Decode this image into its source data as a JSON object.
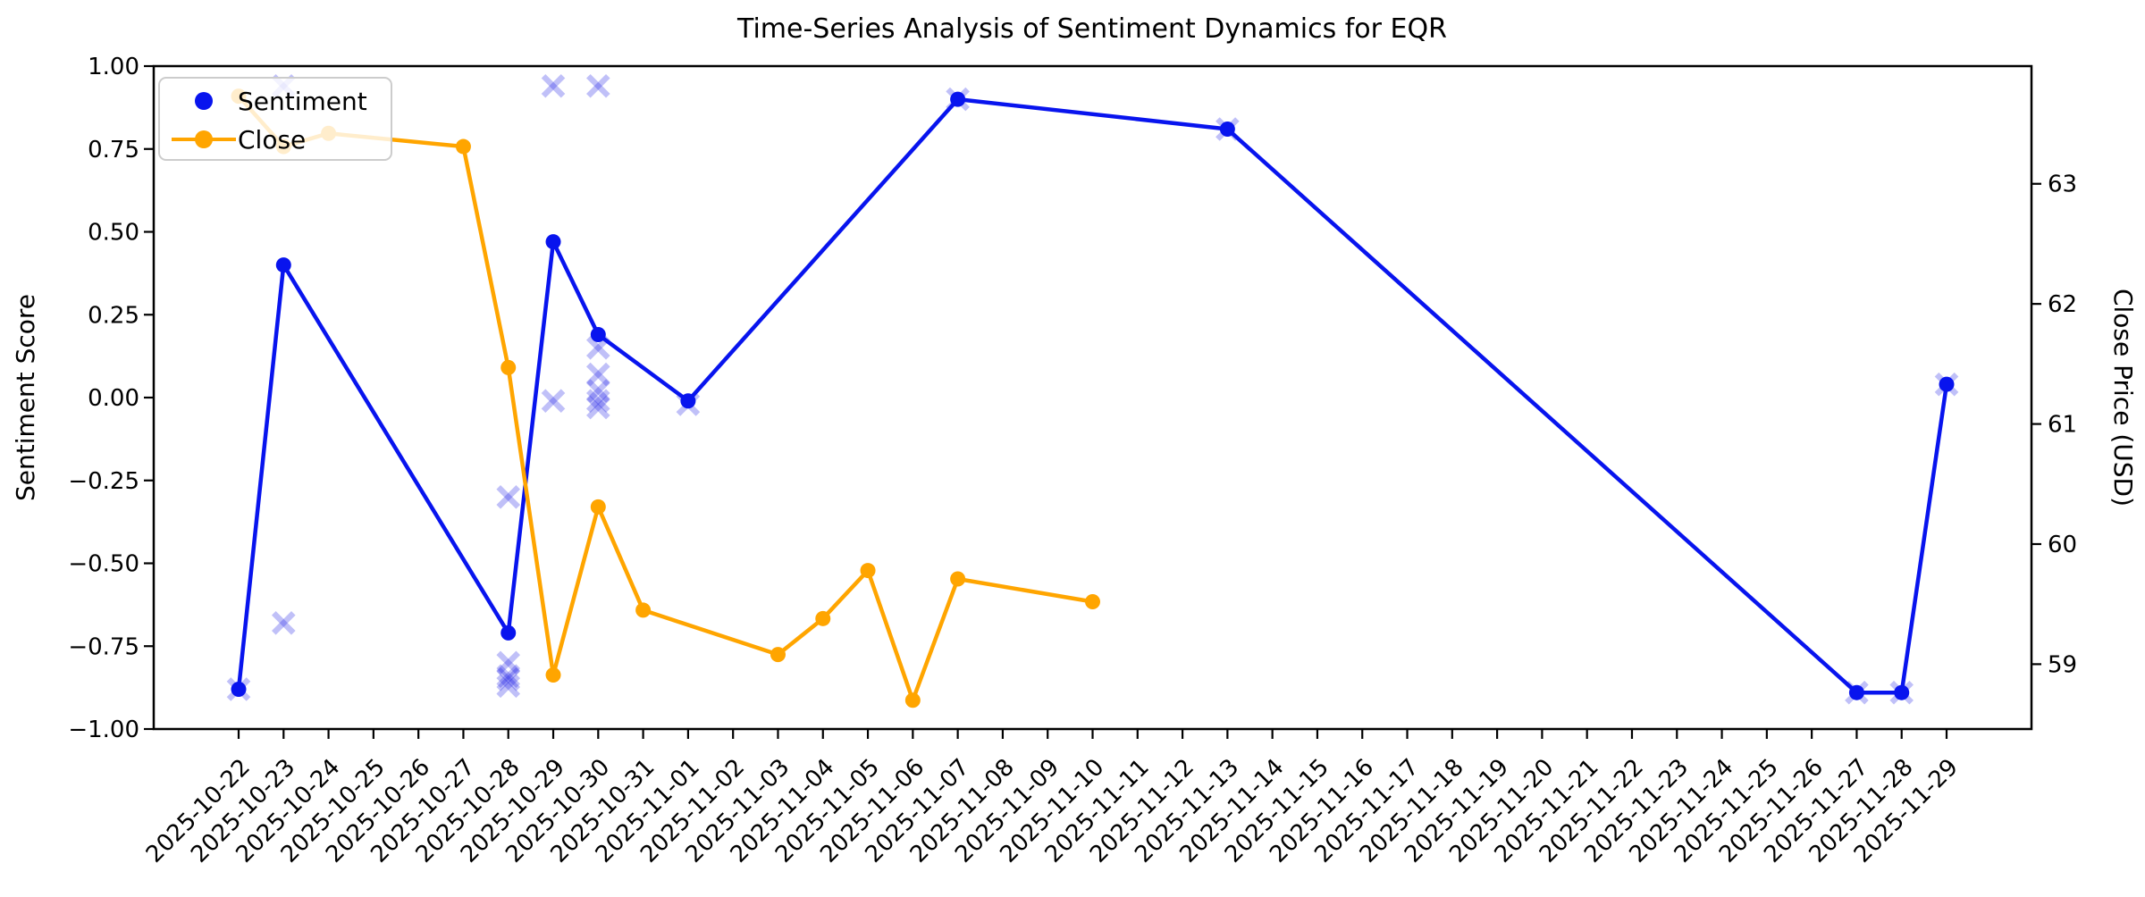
{
  "title": "Time-Series Analysis of Sentiment Dynamics for EQR",
  "legend": {
    "items": [
      {
        "label": "Sentiment",
        "marker": "dot-icon",
        "color": "#0814ee"
      },
      {
        "label": "Close",
        "marker": "line-dot-icon",
        "color": "#ffa500"
      }
    ]
  },
  "chart_data": {
    "type": "line",
    "title": "Time-Series Analysis of Sentiment Dynamics for EQR",
    "grid": false,
    "legend_position": "upper left",
    "x_tick_rotation": 45,
    "x_categories": [
      "2025-10-22",
      "2025-10-23",
      "2025-10-24",
      "2025-10-25",
      "2025-10-26",
      "2025-10-27",
      "2025-10-28",
      "2025-10-29",
      "2025-10-30",
      "2025-10-31",
      "2025-11-01",
      "2025-11-02",
      "2025-11-03",
      "2025-11-04",
      "2025-11-05",
      "2025-11-06",
      "2025-11-07",
      "2025-11-08",
      "2025-11-09",
      "2025-11-10",
      "2025-11-11",
      "2025-11-12",
      "2025-11-13",
      "2025-11-14",
      "2025-11-15",
      "2025-11-16",
      "2025-11-17",
      "2025-11-18",
      "2025-11-19",
      "2025-11-20",
      "2025-11-21",
      "2025-11-22",
      "2025-11-23",
      "2025-11-24",
      "2025-11-25",
      "2025-11-26",
      "2025-11-27",
      "2025-11-28",
      "2025-11-29"
    ],
    "y_left": {
      "label": "Sentiment Score",
      "lim": [
        -1.0,
        1.0
      ],
      "ticks": [
        1.0,
        0.75,
        0.5,
        0.25,
        0.0,
        -0.25,
        -0.5,
        -0.75,
        -1.0
      ],
      "tick_labels": [
        "1.00",
        "0.75",
        "0.50",
        "0.25",
        "0.00",
        "−0.25",
        "−0.50",
        "−0.75",
        "−1.00"
      ]
    },
    "y_right": {
      "label": "Close Price (USD)",
      "lim": [
        58.46,
        63.98
      ],
      "ticks": [
        63,
        62,
        61,
        60,
        59
      ],
      "tick_labels": [
        "63",
        "62",
        "61",
        "60",
        "59"
      ]
    },
    "series": [
      {
        "name": "Sentiment",
        "plot": "line+marker",
        "axis": "left",
        "color": "#0814ee",
        "points": [
          [
            "2025-10-22",
            -0.88
          ],
          [
            "2025-10-23",
            0.4
          ],
          [
            "2025-10-28",
            -0.71
          ],
          [
            "2025-10-29",
            0.47
          ],
          [
            "2025-10-30",
            0.19
          ],
          [
            "2025-11-01",
            -0.01
          ],
          [
            "2025-11-07",
            0.9
          ],
          [
            "2025-11-13",
            0.81
          ],
          [
            "2025-11-27",
            -0.89
          ],
          [
            "2025-11-28",
            -0.89
          ],
          [
            "2025-11-29",
            0.04
          ]
        ]
      },
      {
        "name": "Close",
        "plot": "line+marker",
        "axis": "right",
        "color": "#ffa500",
        "points": [
          [
            "2025-10-22",
            63.73
          ],
          [
            "2025-10-23",
            63.31
          ],
          [
            "2025-10-24",
            63.42
          ],
          [
            "2025-10-27",
            63.31
          ],
          [
            "2025-10-28",
            61.47
          ],
          [
            "2025-10-29",
            58.91
          ],
          [
            "2025-10-30",
            60.31
          ],
          [
            "2025-10-31",
            59.45
          ],
          [
            "2025-11-03",
            59.08
          ],
          [
            "2025-11-04",
            59.38
          ],
          [
            "2025-11-05",
            59.78
          ],
          [
            "2025-11-06",
            58.7
          ],
          [
            "2025-11-07",
            59.71
          ],
          [
            "2025-11-10",
            59.52
          ]
        ]
      },
      {
        "name": "Sentiment observations",
        "plot": "scatter-x",
        "axis": "left",
        "color": "rgba(30,30,230,0.28)",
        "points": [
          [
            "2025-10-22",
            -0.88
          ],
          [
            "2025-10-23",
            0.94
          ],
          [
            "2025-10-23",
            -0.68
          ],
          [
            "2025-10-28",
            -0.3
          ],
          [
            "2025-10-28",
            -0.8
          ],
          [
            "2025-10-28",
            -0.84
          ],
          [
            "2025-10-28",
            -0.85
          ],
          [
            "2025-10-28",
            -0.87
          ],
          [
            "2025-10-29",
            0.94
          ],
          [
            "2025-10-29",
            -0.01
          ],
          [
            "2025-10-30",
            0.94
          ],
          [
            "2025-10-30",
            0.15
          ],
          [
            "2025-10-30",
            0.07
          ],
          [
            "2025-10-30",
            0.02
          ],
          [
            "2025-10-30",
            -0.01
          ],
          [
            "2025-10-30",
            -0.03
          ],
          [
            "2025-11-01",
            -0.02
          ],
          [
            "2025-11-07",
            0.9
          ],
          [
            "2025-11-13",
            0.81
          ],
          [
            "2025-11-27",
            -0.89
          ],
          [
            "2025-11-28",
            -0.89
          ],
          [
            "2025-11-29",
            0.04
          ]
        ]
      }
    ]
  }
}
